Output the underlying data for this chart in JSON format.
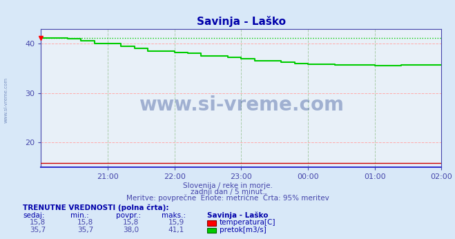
{
  "title": "Savinja - Laško",
  "bg_color": "#d8e8f8",
  "plot_bg_color": "#e8f0f8",
  "grid_color_h": "#ffaaaa",
  "grid_color_v": "#aaccaa",
  "title_color": "#0000aa",
  "axis_color": "#4444aa",
  "text_color": "#4444aa",
  "xlabel_texts": [
    "21:00",
    "22:00",
    "23:00",
    "00:00",
    "01:00",
    "02:00"
  ],
  "ylabel_ticks": [
    20,
    30,
    40
  ],
  "ylim": [
    15,
    43
  ],
  "xlim": [
    0,
    360
  ],
  "xtick_positions": [
    60,
    120,
    180,
    240,
    300,
    360
  ],
  "temp_color": "#cc0000",
  "flow_color": "#00cc00",
  "watermark_text": "www.si-vreme.com",
  "watermark_color": "#1a3a8a",
  "watermark_alpha": 0.35,
  "subtitle1": "Slovenija / reke in morje.",
  "subtitle2": "zadnji dan / 5 minut.",
  "subtitle3": "Meritve: povprečne  Enote: metrične  Črta: 95% meritev",
  "table_header": "TRENUTNE VREDNOSTI (polna črta):",
  "col_headers": [
    "sedaj:",
    "min.:",
    "povpr.:",
    "maks.:",
    "Savinja - Laško"
  ],
  "row1": [
    "15,8",
    "15,8",
    "15,8",
    "15,9"
  ],
  "row2": [
    "35,7",
    "35,7",
    "38,0",
    "41,1"
  ],
  "row1_label": "temperatura[C]",
  "row2_label": "pretok[m3/s]",
  "temp_const": 15.8,
  "flow_dotted_val": 41.1,
  "flow_data_x": [
    0,
    12,
    24,
    36,
    48,
    60,
    72,
    84,
    96,
    108,
    120,
    132,
    144,
    156,
    168,
    180,
    192,
    204,
    216,
    228,
    240,
    252,
    264,
    276,
    288,
    300,
    312,
    324,
    336,
    348,
    360
  ],
  "flow_data_y": [
    41.1,
    41.1,
    41.0,
    40.5,
    40.0,
    40.0,
    39.5,
    39.0,
    38.5,
    38.5,
    38.2,
    38.0,
    37.5,
    37.5,
    37.2,
    37.0,
    36.5,
    36.5,
    36.2,
    36.0,
    35.8,
    35.8,
    35.7,
    35.7,
    35.7,
    35.5,
    35.5,
    35.7,
    35.7,
    35.7,
    35.7
  ]
}
